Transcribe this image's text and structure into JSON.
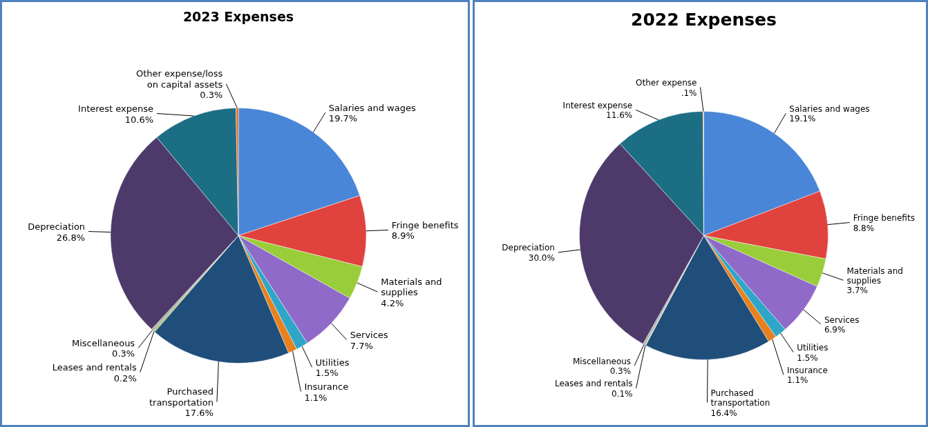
{
  "chart_data": [
    {
      "type": "pie",
      "title": "2023 Expenses",
      "categories": [
        "Salaries and wages",
        "Fringe benefits",
        "Materials and supplies",
        "Services",
        "Utilities",
        "Insurance",
        "Purchased transportation",
        "Leases and rentals",
        "Miscellaneous",
        "Depreciation",
        "Interest expense",
        "Other expense/loss on capital assets"
      ],
      "values": [
        19.7,
        8.9,
        4.2,
        7.7,
        1.5,
        1.1,
        17.6,
        0.2,
        0.3,
        26.8,
        10.6,
        0.3
      ],
      "value_labels": [
        "19.7%",
        "8.9%",
        "4.2%",
        "7.7%",
        "1.5%",
        "1.1%",
        "17.6%",
        "0.2%",
        "0.3%",
        "26.8%",
        "10.6%",
        "0.3%"
      ],
      "colors": [
        "#4a86d8",
        "#e0423d",
        "#9acd3a",
        "#8f6ac8",
        "#2fa6c8",
        "#e8801e",
        "#1f4e7a",
        "#9bbb59",
        "#b0b0b0",
        "#4e3a6a",
        "#1c6e84",
        "#e8701e"
      ]
    },
    {
      "type": "pie",
      "title": "2022 Expenses",
      "categories": [
        "Salaries and wages",
        "Fringe benefits",
        "Materials and supplies",
        "Services",
        "Utilities",
        "Insurance",
        "Purchased transportation",
        "Leases and rentals",
        "Miscellaneous",
        "Depreciation",
        "Interest expense",
        "Other expense"
      ],
      "values": [
        19.1,
        8.8,
        3.7,
        6.9,
        1.5,
        1.1,
        16.4,
        0.1,
        0.3,
        30.0,
        11.6,
        0.1
      ],
      "value_labels": [
        "19.1%",
        "8.8%",
        "3.7%",
        "6.9%",
        "1.5%",
        "1.1%",
        "16.4%",
        "0.1%",
        "0.3%",
        "30.0%",
        "11.6%",
        ".1%"
      ],
      "colors": [
        "#4a86d8",
        "#e0423d",
        "#9acd3a",
        "#8f6ac8",
        "#2fa6c8",
        "#e8801e",
        "#1f4e7a",
        "#9bbb59",
        "#b0b0b0",
        "#4e3a6a",
        "#1c6e84",
        "#e8701e"
      ]
    }
  ]
}
